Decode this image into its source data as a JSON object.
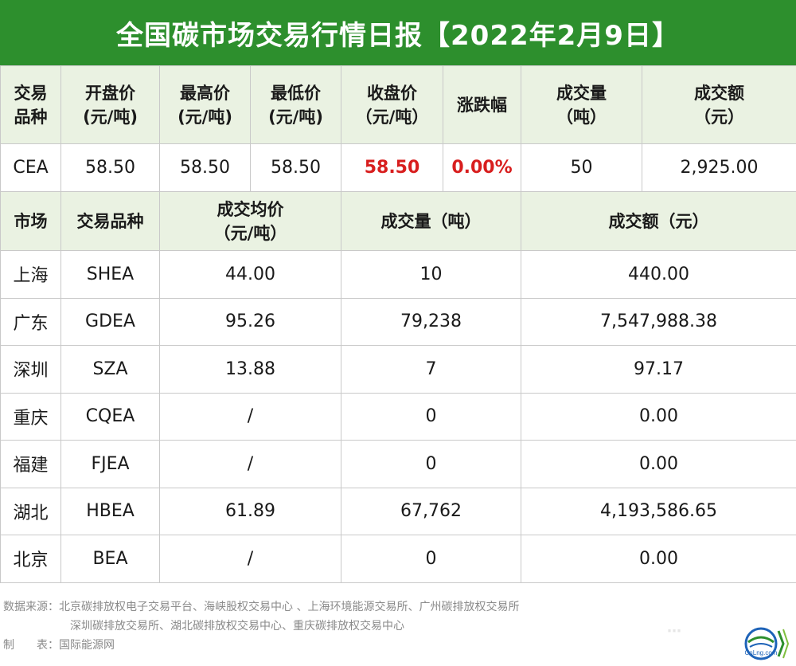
{
  "title": "全国碳市场交易行情日报【2022年2月9日】",
  "top_table": {
    "headers": [
      [
        "交易",
        "品种"
      ],
      [
        "开盘价",
        "(元/吨)"
      ],
      [
        "最高价",
        "(元/吨)"
      ],
      [
        "最低价",
        "(元/吨)"
      ],
      [
        "收盘价",
        "（元/吨）"
      ],
      [
        "涨跌幅"
      ],
      [
        "成交量",
        "（吨）"
      ],
      [
        "成交额",
        "（元）"
      ]
    ],
    "row": [
      "CEA",
      "58.50",
      "58.50",
      "58.50",
      "58.50",
      "0.00%",
      "50",
      "2,925.00"
    ]
  },
  "market_table": {
    "headers": [
      [
        "市场"
      ],
      [
        "交易品种"
      ],
      [
        "成交均价",
        "（元/吨）"
      ],
      [
        "成交量（吨）"
      ],
      [
        "成交额（元）"
      ]
    ],
    "rows": [
      [
        "上海",
        "SHEA",
        "44.00",
        "10",
        "440.00"
      ],
      [
        "广东",
        "GDEA",
        "95.26",
        "79,238",
        "7,547,988.38"
      ],
      [
        "深圳",
        "SZA",
        "13.88",
        "7",
        "97.17"
      ],
      [
        "重庆",
        "CQEA",
        "/",
        "0",
        "0.00"
      ],
      [
        "福建",
        "FJEA",
        "/",
        "0",
        "0.00"
      ],
      [
        "湖北",
        "HBEA",
        "61.89",
        "67,762",
        "4,193,586.65"
      ],
      [
        "北京",
        "BEA",
        "/",
        "0",
        "0.00"
      ]
    ]
  },
  "footer": {
    "source_line1": "数据来源：北京碳排放权电子交易平台、海峡股权交易中心 、上海环境能源交易所、广州碳排放权交易所",
    "source_line2": "深圳碳排放交易所、湖北碳排放权交易中心、重庆碳排放权交易中心",
    "maker": "制　　表：国际能源网"
  },
  "logo": {
    "text": "CnLng.com",
    "icon": "globe-logo-icon"
  },
  "colors": {
    "title_bg": "#2d8f2d",
    "header_bg": "#eaf2e2",
    "highlight": "#d81e1e"
  }
}
